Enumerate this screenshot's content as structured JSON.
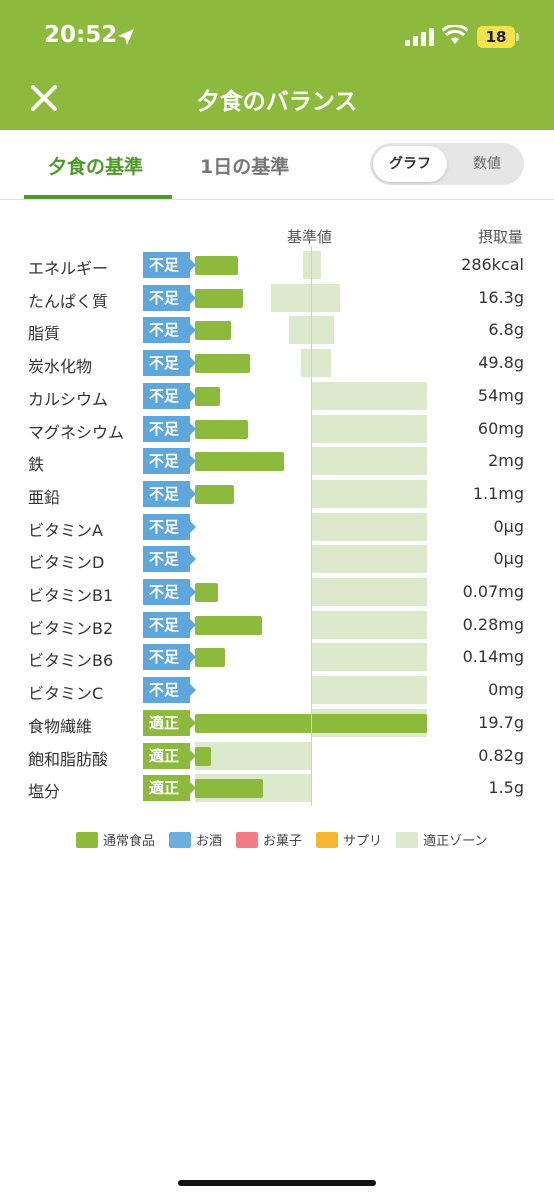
{
  "status": {
    "time": "20:52",
    "battery": "18"
  },
  "header": {
    "title": "夕食のバランス",
    "close_icon": "close-icon"
  },
  "tabs": [
    {
      "label": "夕食の基準",
      "active": true
    },
    {
      "label": "1日の基準",
      "active": false
    }
  ],
  "view_toggle": {
    "graph": "グラフ",
    "number": "数値",
    "selected": "graph"
  },
  "columns": {
    "standard": "基準値",
    "intake": "摂取量"
  },
  "colors": {
    "header": "#8cba3c",
    "accent": "#4d9a2a",
    "short": "#5ea7dc",
    "ok": "#8cba3c",
    "zone": "#dce9cb"
  },
  "rows": [
    {
      "name": "エネルギー",
      "status": "不足",
      "value": "286kcal",
      "bar_pct": 37,
      "zone_pct": [
        92,
        108
      ]
    },
    {
      "name": "たんぱく質",
      "status": "不足",
      "value": "16.3g",
      "bar_pct": 41,
      "zone_pct": [
        65,
        124
      ]
    },
    {
      "name": "脂質",
      "status": "不足",
      "value": "6.8g",
      "bar_pct": 31,
      "zone_pct": [
        80,
        119
      ]
    },
    {
      "name": "炭水化物",
      "status": "不足",
      "value": "49.8g",
      "bar_pct": 47,
      "zone_pct": [
        91,
        116
      ]
    },
    {
      "name": "カルシウム",
      "status": "不足",
      "value": "54mg",
      "bar_pct": 21,
      "zone_pct": [
        100,
        198
      ]
    },
    {
      "name": "マグネシウム",
      "status": "不足",
      "value": "60mg",
      "bar_pct": 45,
      "zone_pct": [
        100,
        198
      ]
    },
    {
      "name": "鉄",
      "status": "不足",
      "value": "2mg",
      "bar_pct": 76,
      "zone_pct": [
        100,
        198
      ]
    },
    {
      "name": "亜鉛",
      "status": "不足",
      "value": "1.1mg",
      "bar_pct": 33,
      "zone_pct": [
        100,
        198
      ]
    },
    {
      "name": "ビタミンA",
      "status": "不足",
      "value": "0µg",
      "bar_pct": 0,
      "zone_pct": [
        100,
        198
      ]
    },
    {
      "name": "ビタミンD",
      "status": "不足",
      "value": "0µg",
      "bar_pct": 0,
      "zone_pct": [
        100,
        198
      ]
    },
    {
      "name": "ビタミンB1",
      "status": "不足",
      "value": "0.07mg",
      "bar_pct": 20,
      "zone_pct": [
        100,
        198
      ]
    },
    {
      "name": "ビタミンB2",
      "status": "不足",
      "value": "0.28mg",
      "bar_pct": 57,
      "zone_pct": [
        100,
        198
      ]
    },
    {
      "name": "ビタミンB6",
      "status": "不足",
      "value": "0.14mg",
      "bar_pct": 26,
      "zone_pct": [
        100,
        198
      ]
    },
    {
      "name": "ビタミンC",
      "status": "不足",
      "value": "0mg",
      "bar_pct": 0,
      "zone_pct": [
        100,
        198
      ]
    },
    {
      "name": "食物繊維",
      "status": "適正",
      "value": "19.7g",
      "bar_pct": 198,
      "zone_pct": [
        100,
        198
      ]
    },
    {
      "name": "飽和脂肪酸",
      "status": "適正",
      "value": "0.82g",
      "bar_pct": 14,
      "zone_pct": [
        0,
        100
      ]
    },
    {
      "name": "塩分",
      "status": "適正",
      "value": "1.5g",
      "bar_pct": 58,
      "zone_pct": [
        0,
        100
      ]
    }
  ],
  "legend": [
    {
      "label": "通常食品",
      "color": "#8cba3c"
    },
    {
      "label": "お酒",
      "color": "#6aafe0"
    },
    {
      "label": "お菓子",
      "color": "#f37b84"
    },
    {
      "label": "サプリ",
      "color": "#f7b733"
    },
    {
      "label": "適正ゾーン",
      "color": "#dce9cb"
    }
  ]
}
